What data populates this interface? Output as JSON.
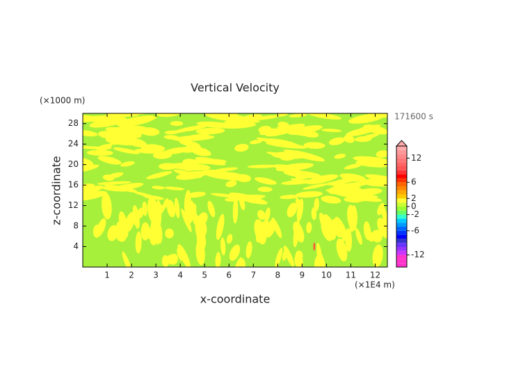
{
  "chart_data": {
    "type": "contour",
    "title": "Vertical Velocity",
    "x_label": "x-coordinate",
    "y_label": "z-coordinate",
    "x_unit": "(×1E4 m)",
    "y_unit": "(×1000 m)",
    "time_label": "171600 s",
    "xlim": [
      0,
      12.5
    ],
    "xticks": [
      1,
      2,
      3,
      4,
      5,
      6,
      7,
      8,
      9,
      10,
      11,
      12
    ],
    "ylim": [
      0,
      30
    ],
    "yticks": [
      4,
      8,
      12,
      16,
      20,
      24,
      28
    ],
    "colorbar": {
      "lim": [
        -15,
        15
      ],
      "ticks": [
        12,
        6,
        2,
        0,
        -2,
        -6,
        -12
      ],
      "colors": [
        "#ff33cc",
        "#ff33cc",
        "#ff33cc",
        "#cc33ff",
        "#9933ff",
        "#6633ff",
        "#3333cc",
        "#0000ff",
        "#0033ff",
        "#0066ff",
        "#0099ff",
        "#00ccff",
        "#33ffcc",
        "#66ff66",
        "#99ff33",
        "#ccff33",
        "#ffff33",
        "#ffcc00",
        "#ffaa00",
        "#ff8800",
        "#ff6600",
        "#ff3300",
        "#ff0000",
        "#ff3333",
        "#ff5555",
        "#ff6666",
        "#ff7777",
        "#ff8888",
        "#ff9999",
        "#ffaaaa"
      ]
    }
  }
}
